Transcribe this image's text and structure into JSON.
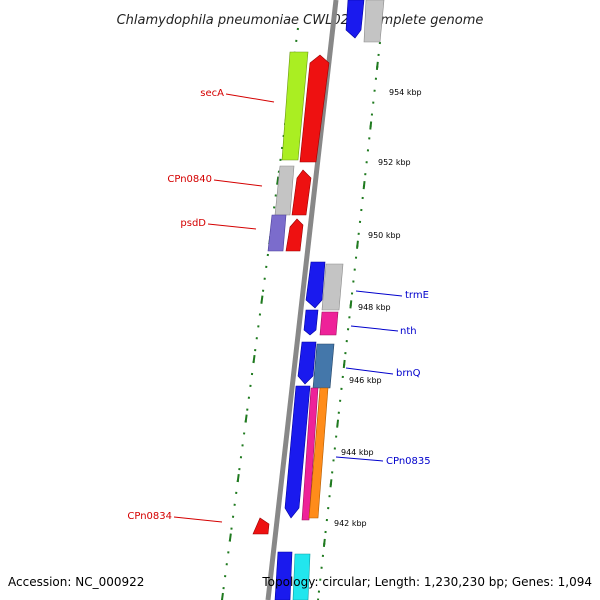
{
  "title": "Chlamydophila pneumoniae CWL029, complete genome",
  "footer": {
    "accession": "Accession: NC_000922",
    "topology": "Topology: circular; Length: 1,230,230 bp; Genes: 1,094"
  },
  "colors": {
    "forward_label": "#d40000",
    "reverse_label": "#0000cc",
    "tick": "#1f7a1f",
    "backbone": "#888888"
  },
  "kbp_labels": [
    "954 kbp",
    "952 kbp",
    "950 kbp",
    "948 kbp",
    "946 kbp",
    "944 kbp",
    "942 kbp"
  ],
  "gene_labels": {
    "secA": "secA",
    "CPn0840": "CPn0840",
    "psdD": "psdD",
    "CPn0834": "CPn0834",
    "trmE": "trmE",
    "nth": "nth",
    "brnQ": "brnQ",
    "CPn0835": "CPn0835"
  }
}
